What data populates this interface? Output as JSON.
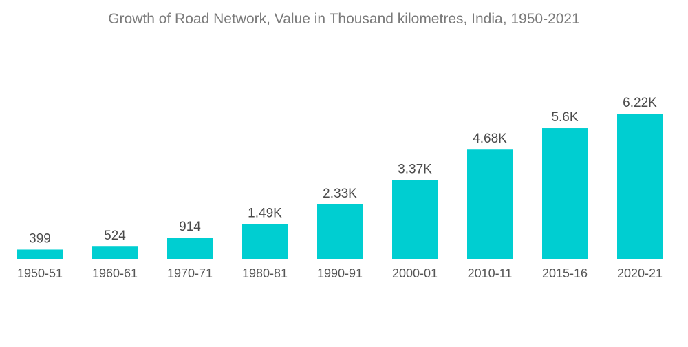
{
  "chart_data": {
    "type": "bar",
    "title": "Growth of Road Network, Value in Thousand kilometres, India, 1950-2021",
    "categories": [
      "1950-51",
      "1960-61",
      "1970-71",
      "1980-81",
      "1990-91",
      "2000-01",
      "2010-11",
      "2015-16",
      "2020-21"
    ],
    "values": [
      399,
      524,
      914,
      1490,
      2330,
      3370,
      4680,
      5600,
      6220
    ],
    "data_labels": [
      "399",
      "524",
      "914",
      "1.49K",
      "2.33K",
      "3.37K",
      "4.68K",
      "5.6K",
      "6.22K"
    ],
    "xlabel": "",
    "ylabel": "",
    "ylim": [
      0,
      6220
    ],
    "grid": false,
    "bar_color": "#00CED1"
  }
}
